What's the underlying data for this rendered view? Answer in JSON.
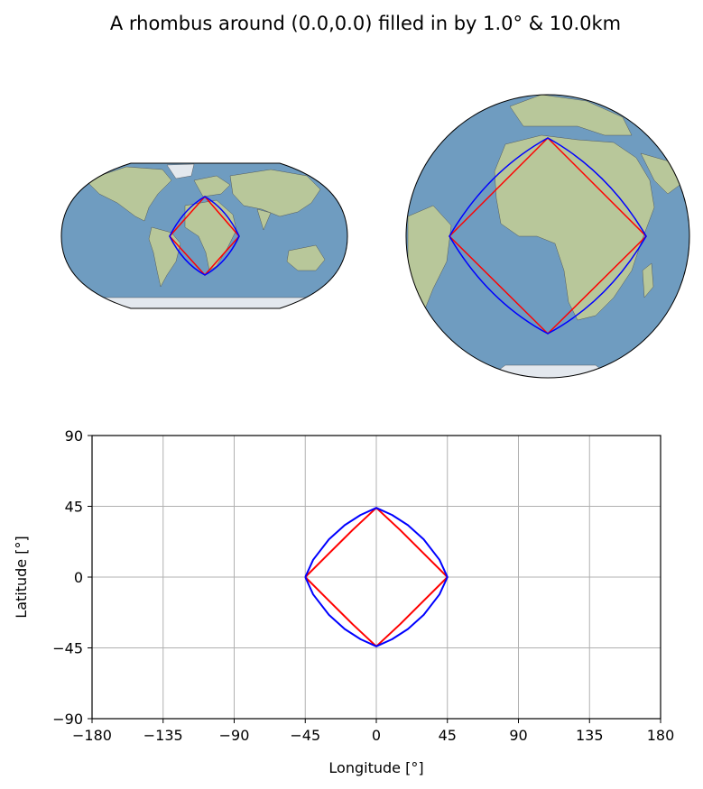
{
  "figure": {
    "title": "A rhombus around (0.0,0.0) filled in by 1.0° & 10.0km"
  },
  "maps": [
    {
      "projection": "robinson",
      "shows": "world-map with rhombus overlay"
    },
    {
      "projection": "orthographic",
      "center_lon": 0,
      "center_lat": 0,
      "shows": "globe with rhombus overlay"
    }
  ],
  "colors": {
    "series_red": "#ff0000",
    "series_blue": "#0000ff",
    "ocean": "#6f9cc0",
    "land": "#b8c79a",
    "grid": "#b0b0b0"
  },
  "chart_data": {
    "type": "line",
    "xlabel": "Longitude [°]",
    "ylabel": "Latitude [°]",
    "xlim": [
      -180,
      180
    ],
    "ylim": [
      -90,
      90
    ],
    "xticks": [
      -180,
      -135,
      -90,
      -45,
      0,
      45,
      90,
      135,
      180
    ],
    "yticks": [
      -90,
      -45,
      0,
      45,
      90
    ],
    "grid": true,
    "series": [
      {
        "color": "#ff0000",
        "x": [
          -45,
          -30,
          -15,
          0,
          15,
          30,
          45,
          30,
          15,
          0,
          -15,
          -30,
          -45
        ],
        "y": [
          0,
          15,
          30,
          44,
          30,
          15,
          0,
          -15,
          -30,
          -44,
          -30,
          -15,
          0
        ]
      },
      {
        "color": "#0000ff",
        "x": [
          -45,
          -40,
          -30,
          -20,
          -10,
          0,
          10,
          20,
          30,
          40,
          45,
          40,
          30,
          20,
          10,
          0,
          -10,
          -20,
          -30,
          -40,
          -45
        ],
        "y": [
          0,
          11,
          24,
          33,
          39.5,
          44,
          39.5,
          33,
          24,
          11,
          0,
          -11,
          -24,
          -33,
          -39.5,
          -44,
          -39.5,
          -33,
          -24,
          -11,
          0
        ]
      }
    ]
  }
}
